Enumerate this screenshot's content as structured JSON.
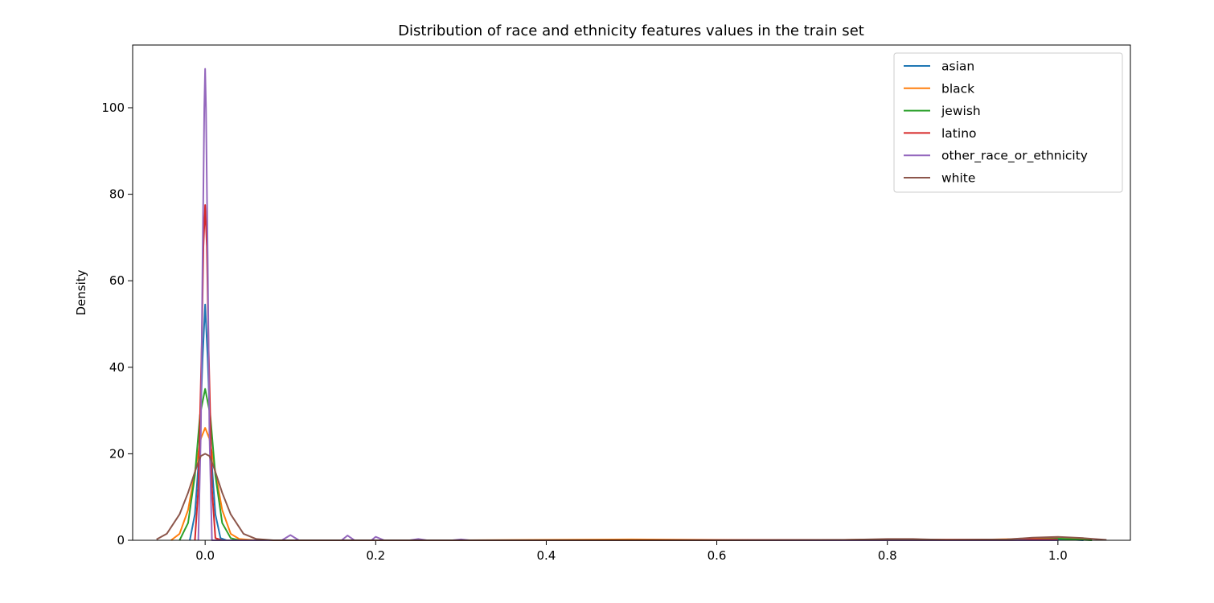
{
  "chart_data": {
    "type": "line",
    "title": "Distribution of race and ethnicity features values in the train set",
    "xlabel": "",
    "ylabel": "Density",
    "xlim": [
      -0.085,
      1.085
    ],
    "ylim": [
      0,
      114.5
    ],
    "x_ticks": [
      0.0,
      0.2,
      0.4,
      0.6,
      0.8,
      1.0
    ],
    "x_tick_labels": [
      "0.0",
      "0.2",
      "0.4",
      "0.6",
      "0.8",
      "1.0"
    ],
    "y_ticks": [
      0,
      20,
      40,
      60,
      80,
      100
    ],
    "y_tick_labels": [
      "0",
      "20",
      "40",
      "60",
      "80",
      "100"
    ],
    "grid": false,
    "legend_position": "top-right",
    "series": [
      {
        "name": "asian",
        "color": "#1f77b4",
        "x": [
          -0.018,
          -0.012,
          -0.007,
          -0.003,
          0.0,
          0.003,
          0.007,
          0.012,
          0.018,
          0.025,
          0.05,
          0.1,
          0.2,
          0.4,
          0.6,
          0.8,
          0.95,
          1.0,
          1.03
        ],
        "y": [
          0.0,
          6.0,
          20.0,
          42.0,
          54.5,
          42.0,
          20.0,
          6.0,
          0.5,
          0.0,
          0.0,
          0.0,
          0.0,
          0.0,
          0.0,
          0.0,
          0.0,
          0.3,
          0.0
        ]
      },
      {
        "name": "black",
        "color": "#ff7f0e",
        "x": [
          -0.04,
          -0.03,
          -0.02,
          -0.01,
          -0.005,
          0.0,
          0.005,
          0.01,
          0.02,
          0.03,
          0.04,
          0.06,
          0.1,
          0.3,
          0.5,
          0.7,
          0.8,
          0.9,
          0.95,
          1.0,
          1.04
        ],
        "y": [
          0.0,
          1.5,
          7.0,
          18.0,
          23.5,
          26.0,
          23.5,
          18.0,
          7.0,
          1.5,
          0.3,
          0.0,
          0.0,
          0.0,
          0.2,
          0.0,
          0.2,
          0.1,
          0.3,
          0.7,
          0.1
        ]
      },
      {
        "name": "jewish",
        "color": "#2ca02c",
        "x": [
          -0.03,
          -0.02,
          -0.012,
          -0.006,
          0.0,
          0.006,
          0.012,
          0.02,
          0.03,
          0.04,
          0.1,
          0.3,
          0.6,
          0.8,
          0.95,
          1.0,
          1.04
        ],
        "y": [
          0.0,
          4.0,
          15.0,
          29.0,
          35.0,
          29.0,
          15.0,
          4.0,
          0.5,
          0.0,
          0.0,
          0.0,
          0.0,
          0.0,
          0.0,
          0.4,
          0.0
        ]
      },
      {
        "name": "latino",
        "color": "#d62728",
        "x": [
          -0.012,
          -0.008,
          -0.004,
          -0.002,
          0.0,
          0.002,
          0.004,
          0.008,
          0.012,
          0.02,
          0.1,
          0.5,
          1.0
        ],
        "y": [
          0.0,
          12.0,
          45.0,
          68.0,
          77.5,
          68.0,
          45.0,
          12.0,
          0.5,
          0.0,
          0.0,
          0.0,
          0.2
        ]
      },
      {
        "name": "other_race_or_ethnicity",
        "color": "#9467bd",
        "x": [
          -0.008,
          -0.005,
          -0.003,
          -0.001,
          0.0,
          0.001,
          0.003,
          0.005,
          0.008,
          0.09,
          0.1,
          0.11,
          0.16,
          0.167,
          0.175,
          0.195,
          0.2,
          0.21,
          0.24,
          0.25,
          0.26,
          0.29,
          0.3,
          0.31,
          0.5,
          1.0
        ],
        "y": [
          0.0,
          25.0,
          65.0,
          100.0,
          109.0,
          100.0,
          65.0,
          25.0,
          0.0,
          0.0,
          1.2,
          0.0,
          0.0,
          1.1,
          0.0,
          0.0,
          0.8,
          0.0,
          0.0,
          0.3,
          0.0,
          0.0,
          0.2,
          0.0,
          0.0,
          0.0
        ]
      },
      {
        "name": "white",
        "color": "#8c564b",
        "x": [
          -0.057,
          -0.045,
          -0.03,
          -0.02,
          -0.01,
          -0.005,
          0.0,
          0.005,
          0.01,
          0.02,
          0.03,
          0.045,
          0.06,
          0.08,
          0.2,
          0.4,
          0.6,
          0.75,
          0.8,
          0.83,
          0.87,
          0.94,
          0.97,
          1.0,
          1.03,
          1.057
        ],
        "y": [
          0.2,
          1.5,
          6.0,
          11.0,
          17.0,
          19.5,
          20.0,
          19.5,
          17.0,
          11.0,
          6.0,
          1.5,
          0.3,
          0.0,
          0.0,
          0.0,
          0.0,
          0.1,
          0.3,
          0.3,
          0.1,
          0.2,
          0.6,
          0.8,
          0.5,
          0.1
        ]
      }
    ]
  }
}
